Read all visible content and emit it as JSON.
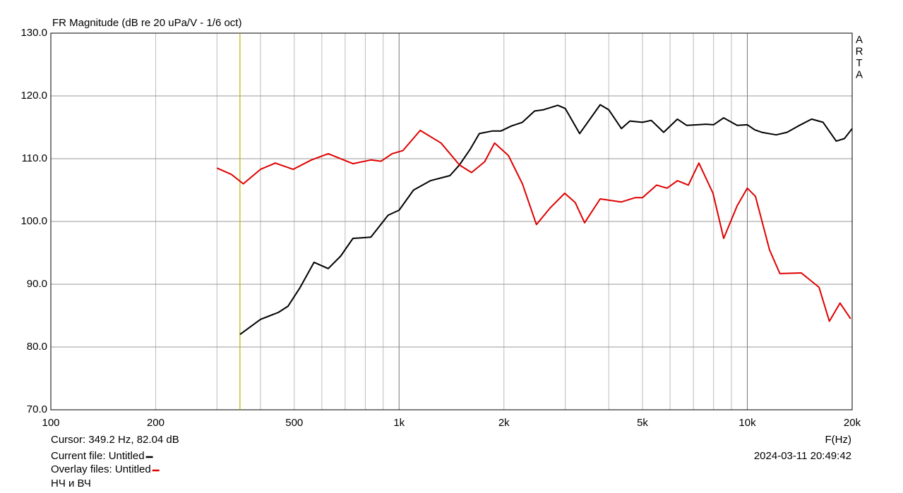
{
  "chart_data": {
    "type": "line",
    "title": "FR Magnitude (dB re 20 uPa/V - 1/6 oct)",
    "x_label": "F(Hz)",
    "watermark": "ARTA",
    "x_scale": "log",
    "xlim": [
      100,
      20000
    ],
    "ylim": [
      70,
      130
    ],
    "xticks": [
      100,
      200,
      500,
      {
        "value": 1000,
        "label": "1k"
      },
      {
        "value": 2000,
        "label": "2k"
      },
      {
        "value": 5000,
        "label": "5k"
      },
      {
        "value": 10000,
        "label": "10k"
      },
      {
        "value": 20000,
        "label": "20k"
      }
    ],
    "xgrid": [
      100,
      200,
      300,
      400,
      500,
      600,
      700,
      800,
      900,
      1000,
      2000,
      3000,
      4000,
      5000,
      6000,
      7000,
      8000,
      9000,
      10000,
      20000
    ],
    "yticks": [
      {
        "value": 70,
        "label": "70.0"
      },
      {
        "value": 80,
        "label": "80.0"
      },
      {
        "value": 90,
        "label": "90.0"
      },
      {
        "value": 100,
        "label": "100.0"
      },
      {
        "value": 110,
        "label": "110.0"
      },
      {
        "value": 120,
        "label": "120.0"
      },
      {
        "value": 130,
        "label": "130.0"
      }
    ],
    "grid": true,
    "cursor_x": 349.2,
    "cursor_color": "#b5b500",
    "cursor_text": "Cursor: 349.2 Hz, 82.04 dB",
    "timestamp": "2024-03-11  20:49:42",
    "note": "НЧ и ВЧ",
    "series": [
      {
        "name": "Current file: Untitled",
        "color": "#000000",
        "x": [
          349.2,
          400,
          450,
          480,
          520,
          570,
          626,
          680,
          737,
          830,
          930,
          1000,
          1100,
          1230,
          1400,
          1490,
          1600,
          1700,
          1850,
          1960,
          2100,
          2260,
          2450,
          2600,
          2855,
          3000,
          3300,
          3780,
          4000,
          4350,
          4600,
          5000,
          5300,
          5750,
          6300,
          6700,
          7200,
          7600,
          8000,
          8550,
          9350,
          10000,
          10500,
          11000,
          12100,
          13000,
          14000,
          15300,
          16500,
          18000,
          19000,
          20000
        ],
        "values": [
          82.0,
          84.4,
          85.5,
          86.5,
          89.5,
          93.5,
          92.5,
          94.5,
          97.3,
          97.5,
          101,
          101.8,
          105,
          106.5,
          107.3,
          109,
          111.5,
          114,
          114.4,
          114.4,
          115.2,
          115.8,
          117.6,
          117.8,
          118.5,
          118,
          114,
          118.6,
          117.8,
          114.8,
          116,
          115.8,
          116.1,
          114.2,
          116.3,
          115.3,
          115.4,
          115.5,
          115.4,
          116.5,
          115.3,
          115.4,
          114.6,
          114.2,
          113.8,
          114.2,
          115.2,
          116.3,
          115.8,
          112.8,
          113.2,
          114.8
        ]
      },
      {
        "name": "Overlay files: Untitled",
        "color": "#e00000",
        "x": [
          300,
          330,
          357,
          400,
          441,
          496,
          560,
          626,
          737,
          830,
          888,
          955,
          1026,
          1150,
          1320,
          1490,
          1615,
          1760,
          1880,
          2060,
          2260,
          2480,
          2720,
          2990,
          3205,
          3410,
          3780,
          4340,
          4770,
          5000,
          5490,
          5880,
          6300,
          6770,
          7260,
          7970,
          8550,
          9350,
          10000,
          10550,
          11580,
          12400,
          14290,
          16070,
          17200,
          18460,
          19800
        ],
        "values": [
          108.5,
          107.5,
          106,
          108.3,
          109.3,
          108.3,
          109.8,
          110.8,
          109.2,
          109.8,
          109.6,
          110.8,
          111.3,
          114.5,
          112.5,
          109,
          107.8,
          109.5,
          112.5,
          110.5,
          106,
          99.5,
          102.2,
          104.5,
          103,
          99.8,
          103.6,
          103.1,
          103.8,
          103.8,
          105.8,
          105.3,
          106.5,
          105.8,
          109.3,
          104.5,
          97.3,
          102.5,
          105.3,
          104,
          95.5,
          91.7,
          91.8,
          89.5,
          84.1,
          87,
          84.5
        ]
      }
    ]
  }
}
